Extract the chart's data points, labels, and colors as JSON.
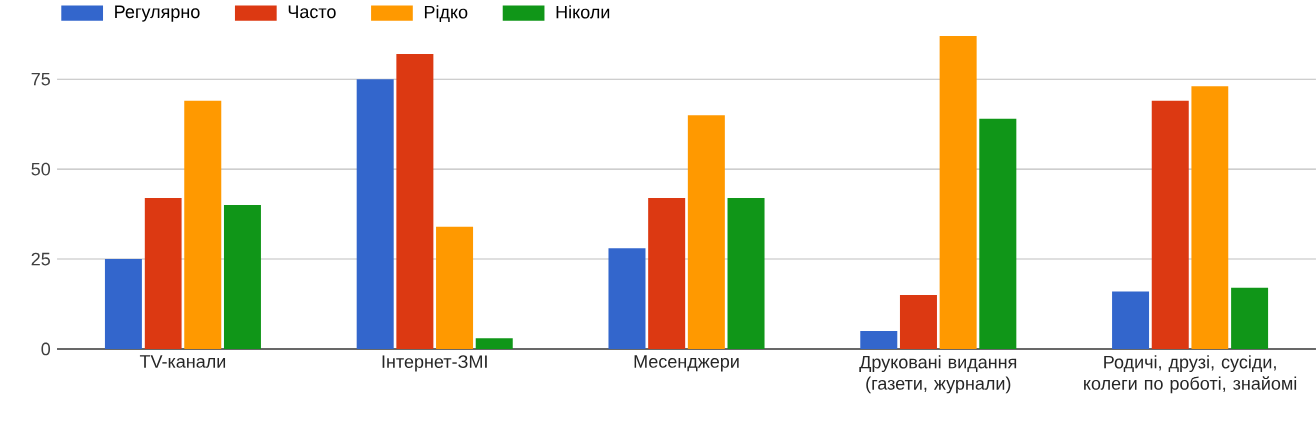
{
  "chart_data": {
    "type": "bar",
    "categories": [
      "TV-канали",
      "Інтернет-ЗМІ",
      "Месенджери",
      "Друковані видання (газети, журнали)",
      "Родичі, друзі, сусіди, колеги по роботі, знайомі"
    ],
    "series": [
      {
        "name": "Регулярно",
        "color": "#3366cc",
        "values": [
          25,
          75,
          28,
          5,
          16
        ]
      },
      {
        "name": "Часто",
        "color": "#dc3912",
        "values": [
          42,
          82,
          42,
          15,
          69
        ]
      },
      {
        "name": "Рідко",
        "color": "#ff9900",
        "values": [
          69,
          34,
          65,
          87,
          73
        ]
      },
      {
        "name": "Ніколи",
        "color": "#109618",
        "values": [
          40,
          3,
          42,
          64,
          17
        ]
      }
    ],
    "ylim": [
      0,
      87
    ],
    "yticks": [
      0,
      25,
      50,
      75
    ],
    "grid": "y",
    "legend": "top left"
  }
}
